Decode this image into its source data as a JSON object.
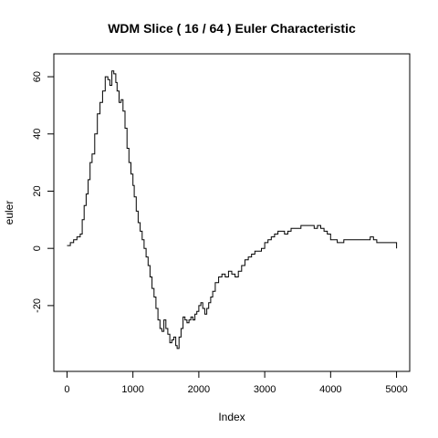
{
  "chart_data": {
    "type": "line",
    "title": "WDM Slice ( 16 / 64 ) Euler Characteristic",
    "xlabel": "Index",
    "ylabel": "euler",
    "xlim": [
      -200,
      5200
    ],
    "ylim": [
      -43,
      68
    ],
    "x_ticks": [
      0,
      1000,
      2000,
      3000,
      4000,
      5000
    ],
    "y_ticks": [
      -20,
      0,
      20,
      40,
      60
    ],
    "grid": false,
    "legend": "none",
    "step": true,
    "line_color": "#000000",
    "series": [
      {
        "x": [
          1,
          50,
          100,
          150,
          200,
          230,
          260,
          290,
          320,
          350,
          380,
          420,
          460,
          500,
          540,
          580,
          620,
          650,
          680,
          710,
          740,
          760,
          790,
          820,
          850,
          880,
          910,
          940,
          970,
          1000,
          1020,
          1050,
          1080,
          1110,
          1140,
          1170,
          1200,
          1230,
          1260,
          1290,
          1320,
          1350,
          1380,
          1410,
          1440,
          1470,
          1500,
          1530,
          1560,
          1590,
          1620,
          1650,
          1670,
          1700,
          1730,
          1760,
          1790,
          1820,
          1850,
          1880,
          1910,
          1940,
          1970,
          2000,
          2030,
          2060,
          2090,
          2120,
          2150,
          2180,
          2210,
          2250,
          2300,
          2350,
          2400,
          2450,
          2500,
          2550,
          2600,
          2650,
          2700,
          2750,
          2800,
          2850,
          2900,
          2950,
          3000,
          3050,
          3100,
          3150,
          3200,
          3250,
          3300,
          3350,
          3400,
          3450,
          3500,
          3550,
          3600,
          3650,
          3700,
          3750,
          3800,
          3850,
          3900,
          3950,
          4000,
          4050,
          4100,
          4200,
          4300,
          4400,
          4500,
          4600,
          4650,
          4700,
          4800,
          4900,
          4990,
          5000
        ],
        "values": [
          1,
          2,
          3,
          4,
          5,
          10,
          15,
          19,
          24,
          30,
          33,
          40,
          47,
          51,
          55,
          60,
          59,
          57,
          62,
          61,
          58,
          55,
          51,
          52,
          48,
          42,
          35,
          30,
          26,
          22,
          18,
          13,
          9,
          6,
          3,
          0,
          -3,
          -6,
          -10,
          -14,
          -17,
          -21,
          -25,
          -28,
          -29,
          -25,
          -28,
          -30,
          -33,
          -32,
          -31,
          -34,
          -35,
          -31,
          -28,
          -24,
          -25,
          -26,
          -25,
          -24,
          -25,
          -23,
          -22,
          -20,
          -19,
          -21,
          -23,
          -21,
          -19,
          -17,
          -15,
          -12,
          -10,
          -9,
          -10,
          -8,
          -9,
          -10,
          -8,
          -6,
          -4,
          -3,
          -2,
          -1,
          -1,
          0,
          2,
          3,
          4,
          5,
          6,
          6,
          5,
          6,
          7,
          7,
          7,
          8,
          8,
          8,
          8,
          7,
          8,
          7,
          6,
          5,
          3,
          3,
          2,
          3,
          3,
          3,
          3,
          4,
          3,
          2,
          2,
          2,
          2,
          0
        ]
      }
    ]
  }
}
